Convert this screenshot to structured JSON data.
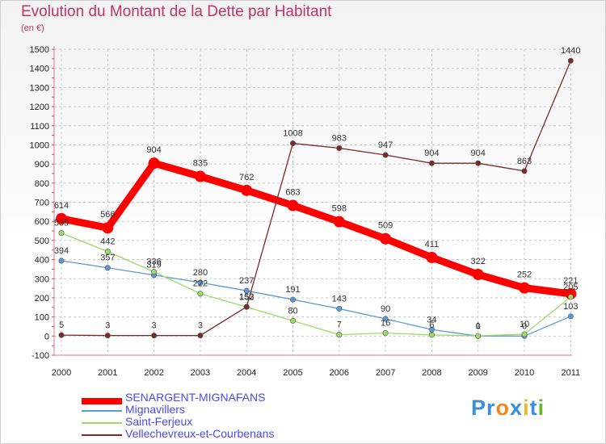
{
  "chart_data": {
    "type": "line",
    "title": "Evolution du Montant de la Dette par Habitant",
    "subtitle": "(en €)",
    "xlabel": "",
    "ylabel": "",
    "ylim": [
      -100,
      1500
    ],
    "ytick_step": 100,
    "categories": [
      "2000",
      "2001",
      "2002",
      "2003",
      "2004",
      "2005",
      "2006",
      "2007",
      "2008",
      "2009",
      "2010",
      "2011"
    ],
    "series": [
      {
        "name": "SENARGENT-MIGNAFANS",
        "color": "#ff0000",
        "values": [
          614,
          566,
          904,
          835,
          762,
          683,
          598,
          509,
          411,
          322,
          252,
          221
        ],
        "labels": [
          "614",
          "566",
          "904",
          "835",
          "762",
          "683",
          "598",
          "509",
          "411",
          "322",
          "252",
          "221"
        ],
        "label_pos": "above"
      },
      {
        "name": "Mignavillers",
        "color": "#5b9bd5",
        "values": [
          394,
          357,
          319,
          280,
          237,
          191,
          143,
          90,
          34,
          0,
          0,
          103
        ],
        "labels": [
          "394",
          "357",
          "319",
          "280",
          "237",
          "191",
          "143",
          "90",
          "34",
          "0",
          "0",
          "103"
        ],
        "label_pos": "above"
      },
      {
        "name": "Saint-Ferjeux",
        "color": "#99dd66",
        "values": [
          539,
          442,
          336,
          222,
          152,
          80,
          7,
          16,
          6,
          1,
          10,
          205
        ],
        "labels": [
          "539",
          "442",
          "336",
          "222",
          "152",
          "80",
          "7",
          "16",
          "6",
          "1",
          "10",
          "205"
        ],
        "label_pos": "above"
      },
      {
        "name": "Vellechevreux-et-Courbenans",
        "color": "#7b2a2a",
        "values": [
          5,
          3,
          3,
          3,
          153,
          1008,
          983,
          947,
          904,
          904,
          863,
          1440
        ],
        "labels": [
          "5",
          "3",
          "3",
          "3",
          "153",
          "1008",
          "983",
          "947",
          "904",
          "904",
          "863",
          "1440"
        ],
        "label_pos": "above"
      }
    ],
    "legend_position": "bottom-left"
  },
  "watermark": {
    "text": "Proxiti",
    "letters": [
      "P",
      "r",
      "o",
      "x",
      "i",
      "t",
      "i"
    ],
    "colors": [
      "#3a8fd8",
      "#3a8fd8",
      "#f08a1c",
      "#3a8fd8",
      "#f0b41c",
      "#3a8fd8",
      "#6ab42a"
    ]
  }
}
